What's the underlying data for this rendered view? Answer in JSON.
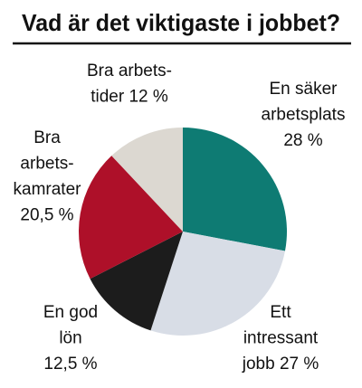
{
  "chart_data": {
    "type": "pie",
    "title": "Vad är det viktigaste i jobbet?",
    "categories": [
      [
        "En säker",
        "arbetsplats"
      ],
      [
        "Ett",
        "intressant",
        "jobb"
      ],
      [
        "En god",
        "lön"
      ],
      [
        "Bra",
        "arbets-",
        "kamrater"
      ],
      [
        "Bra arbets-",
        "tider"
      ]
    ],
    "values": [
      28,
      27,
      12.5,
      20.5,
      12
    ],
    "value_labels": [
      "28 %",
      "27 %",
      "12,5 %",
      "20,5 %",
      "12 %"
    ],
    "colors": [
      "#0e7b73",
      "#d8dde6",
      "#1c1c1c",
      "#ae1029",
      "#dcd8d1"
    ]
  }
}
